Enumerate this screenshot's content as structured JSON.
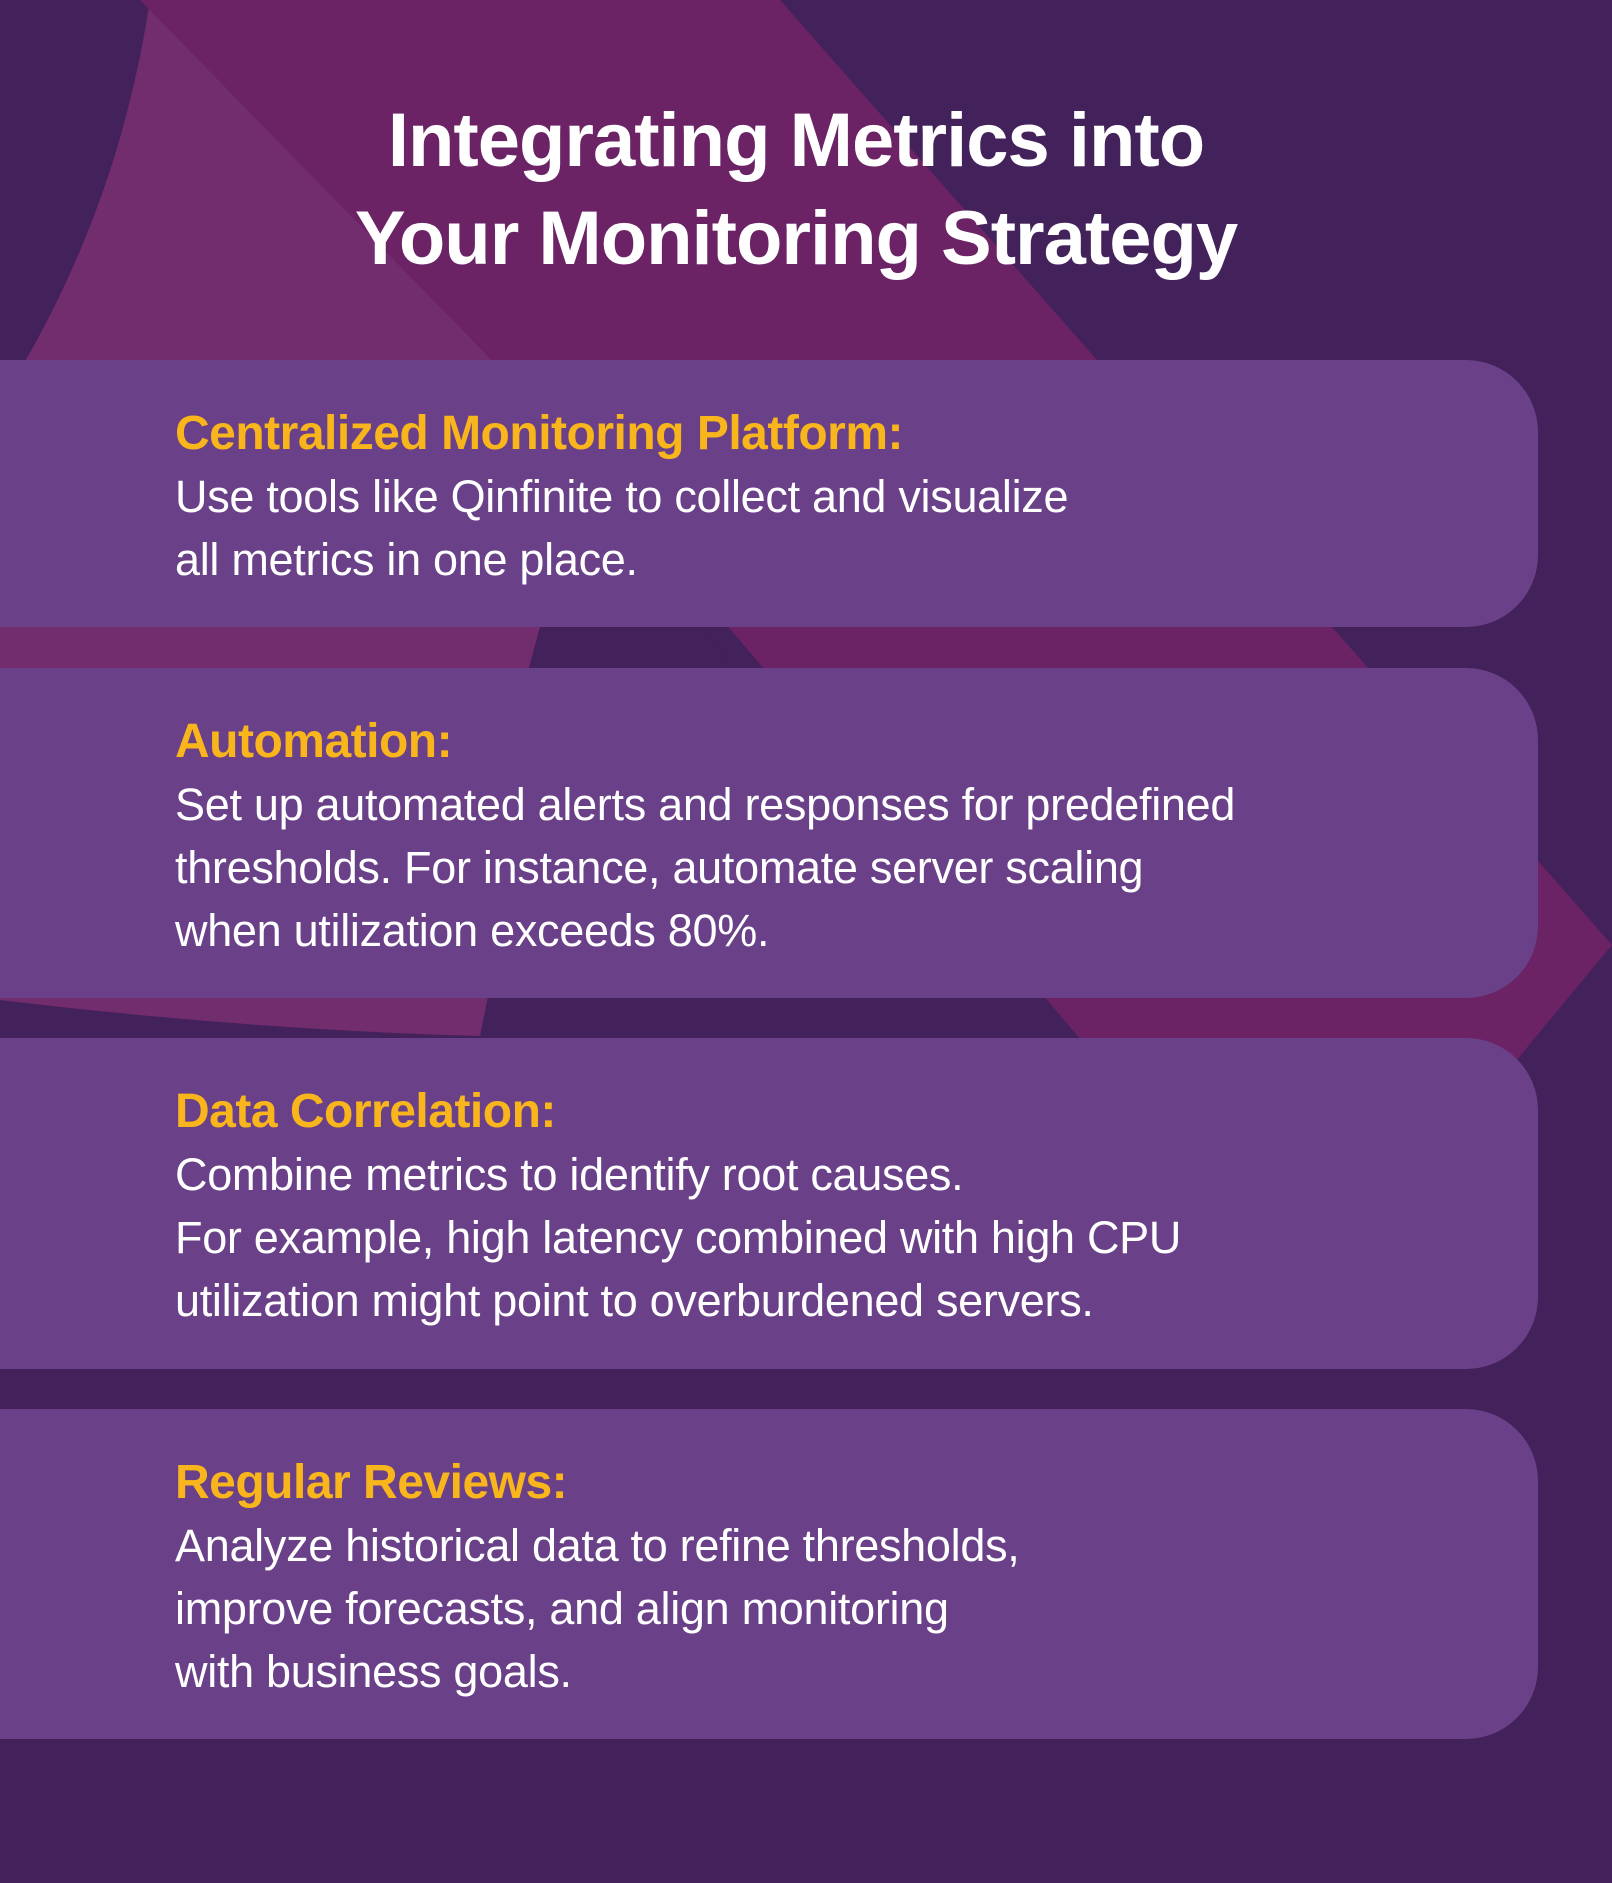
{
  "title": {
    "line1": "Integrating Metrics into",
    "line2": "Your Monitoring Strategy"
  },
  "colors": {
    "background": "#43215a",
    "card": "#6a4088",
    "accent": "#f9b51c",
    "shape": "#6b2366"
  },
  "sections": [
    {
      "heading": "Centralized Monitoring Platform:",
      "body": "Use tools like Qinfinite to collect and visualize\nall metrics in one place."
    },
    {
      "heading": "Automation:",
      "body": "Set up automated alerts and responses for predefined\nthresholds. For instance, automate server scaling\nwhen utilization exceeds 80%."
    },
    {
      "heading": "Data Correlation:",
      "body": "Combine metrics to identify root causes.\nFor example, high latency combined with high CPU\nutilization might point to overburdened servers."
    },
    {
      "heading": "Regular Reviews:",
      "body": "Analyze historical data to refine thresholds,\nimprove forecasts, and align monitoring\nwith business goals."
    }
  ]
}
